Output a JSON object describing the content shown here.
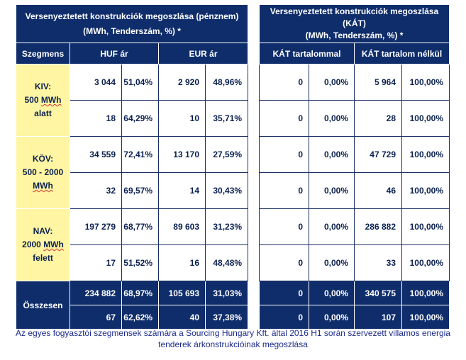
{
  "left_table": {
    "title_line1": "Versenyeztetett konstrukciók megoszlása (pénznem)",
    "title_line2": "(MWh, Tenderszám, %) *",
    "col_segment": "Szegmens",
    "col_huf": "HUF ár",
    "col_eur": "EUR ár",
    "segments": [
      {
        "line1": "KIV:",
        "line2": "500 MWh",
        "line3": "alatt",
        "rows": [
          [
            "3 044",
            "51,04%",
            "2 920",
            "48,96%"
          ],
          [
            "18",
            "64,29%",
            "10",
            "35,71%"
          ]
        ]
      },
      {
        "line1": "KÖV:",
        "line2": "500 - 2000",
        "line3": "MWh",
        "rows": [
          [
            "34 559",
            "72,41%",
            "13 170",
            "27,59%"
          ],
          [
            "32",
            "69,57%",
            "14",
            "30,43%"
          ]
        ]
      },
      {
        "line1": "NAV:",
        "line2": "2000 MWh",
        "line3": "felett",
        "rows": [
          [
            "197 279",
            "68,77%",
            "89 603",
            "31,23%"
          ],
          [
            "17",
            "51,52%",
            "16",
            "48,48%"
          ]
        ]
      }
    ],
    "total_label": "Összesen",
    "total_rows": [
      [
        "234 882",
        "68,97%",
        "105 693",
        "31,03%"
      ],
      [
        "67",
        "62,62%",
        "40",
        "37,38%"
      ]
    ]
  },
  "right_table": {
    "title_line1": "Versenyeztetett konstrukciók megoszlása",
    "title_line2": "(KÁT)",
    "title_line3": "(MWh, Tenderszám, %) *",
    "col_with": "KÁT tartalommal",
    "col_without": "KÁT tartalom nélkül",
    "rows": [
      [
        "0",
        "0,00%",
        "5 964",
        "100,00%"
      ],
      [
        "0",
        "0,00%",
        "28",
        "100,00%"
      ],
      [
        "0",
        "0,00%",
        "47 729",
        "100,00%"
      ],
      [
        "0",
        "0,00%",
        "46",
        "100,00%"
      ],
      [
        "0",
        "0,00%",
        "286 882",
        "100,00%"
      ],
      [
        "0",
        "0,00%",
        "33",
        "100,00%"
      ]
    ],
    "total_rows": [
      [
        "0",
        "0,00%",
        "340 575",
        "100,00%"
      ],
      [
        "0",
        "0,00%",
        "107",
        "100,00%"
      ]
    ]
  },
  "caption": {
    "line1": "Az egyes fogyasztói szegmensek számára a Sourcing Hungary Kft. által 2016 H1 során szervezett villamos energia",
    "line2": "tenderek árkonstrukcióinak megoszlása"
  },
  "colors": {
    "header_navy": "#0f2d6b",
    "segment_yellow": "#fff5a3",
    "text_dark_blue": "#0a2050",
    "caption_blue": "#1a2a8c"
  }
}
